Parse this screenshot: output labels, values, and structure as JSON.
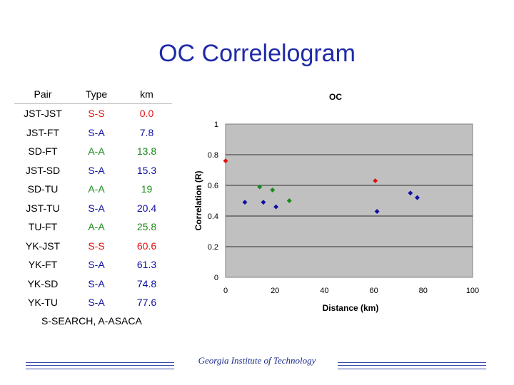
{
  "slide": {
    "title": "OC Correlelogram",
    "footnote": "S-SEARCH, A-ASACA",
    "footer": "Georgia Institute of Technology"
  },
  "table": {
    "headers": [
      "Pair",
      "Type",
      "km"
    ],
    "rows": [
      {
        "pair": "JST-JST",
        "type": "S-S",
        "km": "0.0"
      },
      {
        "pair": "JST-FT",
        "type": "S-A",
        "km": "7.8"
      },
      {
        "pair": "SD-FT",
        "type": "A-A",
        "km": "13.8"
      },
      {
        "pair": "JST-SD",
        "type": "S-A",
        "km": "15.3"
      },
      {
        "pair": "SD-TU",
        "type": "A-A",
        "km": "19"
      },
      {
        "pair": "JST-TU",
        "type": "S-A",
        "km": "20.4"
      },
      {
        "pair": "TU-FT",
        "type": "A-A",
        "km": "25.8"
      },
      {
        "pair": "YK-JST",
        "type": "S-S",
        "km": "60.6"
      },
      {
        "pair": "YK-FT",
        "type": "S-A",
        "km": "61.3"
      },
      {
        "pair": "YK-SD",
        "type": "S-A",
        "km": "74.8"
      },
      {
        "pair": "YK-TU",
        "type": "S-A",
        "km": "77.6"
      }
    ],
    "type_colors": {
      "S-S": "#e01010",
      "S-A": "#1010a0",
      "A-A": "#1a8a1a"
    }
  },
  "chart_data": {
    "type": "scatter",
    "title": "OC",
    "xlabel": "Distance (km)",
    "ylabel": "Correlation (R)",
    "xlim": [
      0,
      100
    ],
    "ylim": [
      0,
      1
    ],
    "xticks": [
      "0",
      "20",
      "40",
      "60",
      "80",
      "100"
    ],
    "yticks": [
      "0",
      "0.2",
      "0.4",
      "0.6",
      "0.8",
      "1"
    ],
    "grid": true,
    "plot_background": "#c0c0c0",
    "series": [
      {
        "color": "#e01010",
        "x": [
          0,
          60.6
        ],
        "y": [
          0.76,
          0.63
        ]
      },
      {
        "color": "#1a8a1a",
        "x": [
          13.8,
          19,
          25.8
        ],
        "y": [
          0.59,
          0.57,
          0.5
        ]
      },
      {
        "color": "#1010a0",
        "x": [
          7.8,
          15.3,
          20.4,
          61.3,
          74.8,
          77.6
        ],
        "y": [
          0.49,
          0.49,
          0.46,
          0.43,
          0.55,
          0.52
        ]
      }
    ]
  }
}
